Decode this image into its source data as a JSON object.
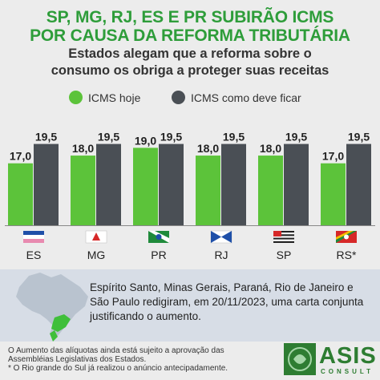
{
  "header": {
    "title_line1": "SP, MG, RJ, ES E PR SUBIRÃO ICMS",
    "title_line2": "POR CAUSA DA REFORMA TRIBUTÁRIA",
    "subtitle_line1": "Estados alegam que a reforma sobre o",
    "subtitle_line2": "consumo os obriga a proteger suas receitas"
  },
  "colors": {
    "title": "#2e9d3a",
    "icms_hoje": "#5cc33a",
    "icms_futuro": "#4a4f55"
  },
  "chart_data": {
    "type": "bar",
    "categories": [
      "ES",
      "MG",
      "PR",
      "RJ",
      "SP",
      "RS*"
    ],
    "series": [
      {
        "name": "ICMS hoje",
        "values": [
          17.0,
          18.0,
          19.0,
          18.0,
          18.0,
          17.0
        ],
        "labels": [
          "17,0",
          "18,0",
          "19,0",
          "18,0",
          "18,0",
          "17,0"
        ]
      },
      {
        "name": "ICMS como deve ficar",
        "values": [
          19.5,
          19.5,
          19.5,
          19.5,
          19.5,
          19.5
        ],
        "labels": [
          "19,5",
          "19,5",
          "19,5",
          "19,5",
          "19,5",
          "19,5"
        ]
      }
    ],
    "ylim": [
      0,
      20
    ],
    "grid": false,
    "legend": "top"
  },
  "flags": [
    "es-flag-icon",
    "mg-flag-icon",
    "pr-flag-icon",
    "rj-flag-icon",
    "sp-flag-icon",
    "rs-flag-icon"
  ],
  "info": {
    "text": "Espírito Santo, Minas Gerais, Paraná, Rio de Janeiro e São Paulo redigiram, em 20/11/2023, uma carta conjunta justificando o aumento."
  },
  "footnotes": {
    "line1": "O Aumento das alíquotas ainda está sujeito a aprovação das",
    "line2": "Assembléias Legislativas dos Estados.",
    "line3": "* O Rio grande do Sul já realizou o anúncio antecipadamente."
  },
  "logo": {
    "name": "ASIS",
    "sub": "CONSULT"
  }
}
